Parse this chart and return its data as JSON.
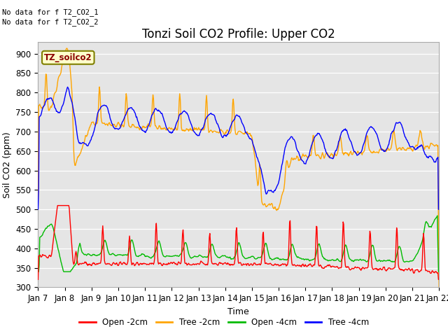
{
  "title": "Tonzi Soil CO2 Profile: Upper CO2",
  "ylabel": "Soil CO2 (ppm)",
  "xlabel": "Time",
  "no_data_text_1": "No data for f T2_CO2_1",
  "no_data_text_2": "No data for f T2_CO2_2",
  "site_label": "TZ_soilco2",
  "ylim": [
    300,
    930
  ],
  "yticks": [
    300,
    350,
    400,
    450,
    500,
    550,
    600,
    650,
    700,
    750,
    800,
    850,
    900
  ],
  "xtick_labels": [
    "Jan 7",
    "Jan 8",
    "Jan 9",
    "Jan 10",
    "Jan 11",
    "Jan 12",
    "Jan 13",
    "Jan 14",
    "Jan 15",
    "Jan 16",
    "Jan 17",
    "Jan 18",
    "Jan 19",
    "Jan 20",
    "Jan 21",
    "Jan 22"
  ],
  "colors": {
    "open_2cm": "#ff0000",
    "tree_2cm": "#ffa500",
    "open_4cm": "#00bb00",
    "tree_4cm": "#0000ff"
  },
  "legend_labels": [
    "Open -2cm",
    "Tree -2cm",
    "Open -4cm",
    "Tree -4cm"
  ],
  "bg_color": "#e5e5e5",
  "title_fontsize": 12,
  "label_fontsize": 9,
  "tick_fontsize": 8.5
}
